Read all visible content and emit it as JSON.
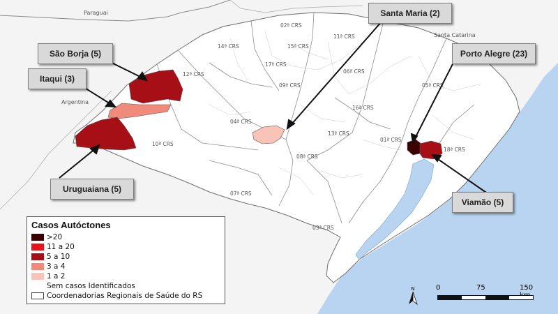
{
  "legend": {
    "title": "Casos Autóctones",
    "items": [
      {
        "label": ">20",
        "color": "#3d0000"
      },
      {
        "label": "11 a 20",
        "color": "#e8141c"
      },
      {
        "label": "5 a 10",
        "color": "#a50f15"
      },
      {
        "label": "3 a 4",
        "color": "#f08a7a"
      },
      {
        "label": "1 a 2",
        "color": "#f9c3b8"
      },
      {
        "label": "Sem casos Identificados",
        "color": "#ffffff"
      },
      {
        "label": "Coordenadorias Regionais de Saúde do RS",
        "color": "outline"
      }
    ]
  },
  "callouts": {
    "santa_maria": "Santa Maria (2)",
    "sao_borja": "São Borja (5)",
    "porto_alegre": "Porto Alegre (23)",
    "itaqui": "Itaqui (3)",
    "uruguaiana": "Uruguaiana (5)",
    "viamao": "Viamão (5)"
  },
  "countries": {
    "paraguai": "Paraguai",
    "argentina": "Argentina",
    "santa_catarina": "Santa Catarina"
  },
  "crs_labels": [
    "02ª CRS",
    "11ª CRS",
    "14ª CRS",
    "15ª CRS",
    "17ª CRS",
    "12ª CRS",
    "06ª CRS",
    "09ª CRS",
    "05ª CRS",
    "16ª CRS",
    "04ª CRS",
    "13ª CRS",
    "01ª CRS",
    "18ª CRS",
    "10ª CRS",
    "08ª CRS",
    "07ª CRS",
    "03ª CRS"
  ],
  "scale": {
    "tick0": "0",
    "tick1": "75",
    "tick2": "150 km"
  },
  "north": "N",
  "colors": {
    "ocean": "#b8d4f0",
    "land_out": "#f4f4f4",
    "state": "#ffffff",
    "border": "#9a9a9a"
  }
}
